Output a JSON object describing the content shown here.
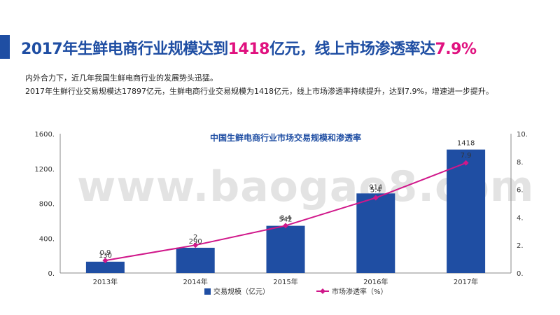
{
  "header": {
    "title_pre": "2017年生鲜电商行业规模达到",
    "title_hl1": "1418",
    "title_mid": "亿元，线上市场渗透率达",
    "title_hl2": "7.9%"
  },
  "paragraphs": [
    "内外合力下，近几年我国生鲜电商行业的发展势头迅猛。",
    "2017年生鲜行业交易规模达17897亿元，生鲜电商行业交易规模为1418亿元，线上市场渗透率持续提升，达到7.9%，增速进一步提升。"
  ],
  "watermark": "www.baogao8.com",
  "colors": {
    "bar": "#1f4ea3",
    "line": "#d0178a",
    "title_accent": "#e0117f",
    "title": "#1f4ea3"
  },
  "chart_data": {
    "type": "bar+line",
    "title": "中国生鲜电商行业市场交易规模和渗透率",
    "categories": [
      "2013年",
      "2014年",
      "2015年",
      "2016年",
      "2017年"
    ],
    "series": [
      {
        "name": "交易规模（亿元）",
        "type": "bar",
        "axis": "left",
        "values": [
          130,
          290,
          542,
          914,
          1418
        ],
        "labels": [
          "130",
          "290",
          "542",
          "914",
          "1418"
        ]
      },
      {
        "name": "市场渗透率（%）",
        "type": "line",
        "axis": "right",
        "values": [
          0.9,
          2,
          3.4,
          5.4,
          7.9
        ],
        "labels": [
          "0.9",
          "2",
          "3.4",
          "5.4",
          "7.9"
        ]
      }
    ],
    "y_left": {
      "min": 0,
      "max": 1600,
      "ticks": [
        "0.",
        "400.",
        "800.",
        "1200.",
        "1600."
      ]
    },
    "y_right": {
      "min": 0,
      "max": 10,
      "ticks": [
        "0.",
        "2.",
        "4.",
        "6.",
        "8.",
        "10."
      ]
    },
    "grid": false,
    "legend_position": "bottom"
  }
}
